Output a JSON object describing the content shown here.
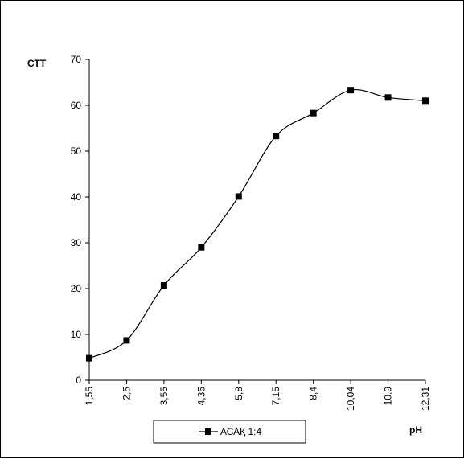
{
  "chart_data": {
    "type": "line",
    "title": "",
    "ylabel": "СТТ",
    "xlabel": "pH",
    "categories": [
      "1,55",
      "2,5",
      "3,55",
      "4,35",
      "5,8",
      "7,15",
      "8,4",
      "10,04",
      "10,9",
      "12,31"
    ],
    "series": [
      {
        "name": "АСАҚ 1:4",
        "values": [
          4.8,
          8.7,
          20.7,
          29,
          40.1,
          53.3,
          58.3,
          63.3,
          61.7,
          61
        ]
      }
    ],
    "ylim": [
      0,
      70
    ],
    "yticks": [
      0,
      10,
      20,
      30,
      40,
      50,
      60,
      70
    ],
    "grid": false,
    "legend_position": "bottom",
    "colors": {
      "line": "#000000",
      "marker": "#000000",
      "background": "#ffffff"
    }
  }
}
